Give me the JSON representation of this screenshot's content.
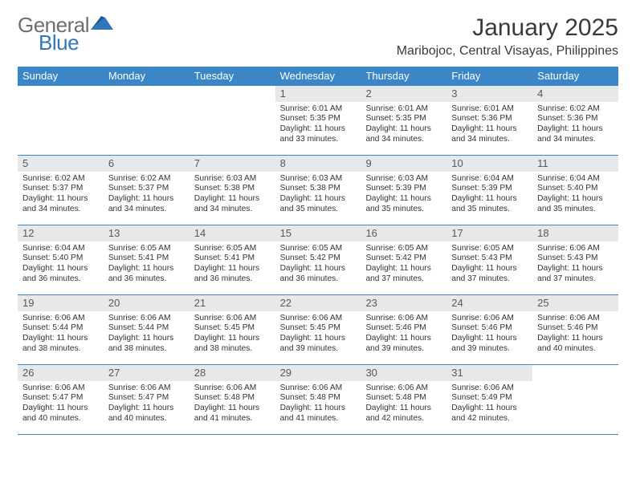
{
  "colors": {
    "header_bg": "#3B86C6",
    "row_rule": "#3B86C6",
    "daynum_bg": "#e7e8e9",
    "daynum_text": "#57595b",
    "body_text": "#333333",
    "page_bg": "#ffffff",
    "logo_gray": "#6d6e71",
    "logo_blue": "#2F77B9"
  },
  "logo": {
    "word1": "General",
    "word2": "Blue"
  },
  "title": "January 2025",
  "location": "Maribojoc, Central Visayas, Philippines",
  "days_of_week": [
    "Sunday",
    "Monday",
    "Tuesday",
    "Wednesday",
    "Thursday",
    "Friday",
    "Saturday"
  ],
  "weeks": [
    [
      {
        "n": "",
        "lines": []
      },
      {
        "n": "",
        "lines": []
      },
      {
        "n": "",
        "lines": []
      },
      {
        "n": "1",
        "lines": [
          "Sunrise: 6:01 AM",
          "Sunset: 5:35 PM",
          "Daylight: 11 hours and 33 minutes."
        ]
      },
      {
        "n": "2",
        "lines": [
          "Sunrise: 6:01 AM",
          "Sunset: 5:35 PM",
          "Daylight: 11 hours and 34 minutes."
        ]
      },
      {
        "n": "3",
        "lines": [
          "Sunrise: 6:01 AM",
          "Sunset: 5:36 PM",
          "Daylight: 11 hours and 34 minutes."
        ]
      },
      {
        "n": "4",
        "lines": [
          "Sunrise: 6:02 AM",
          "Sunset: 5:36 PM",
          "Daylight: 11 hours and 34 minutes."
        ]
      }
    ],
    [
      {
        "n": "5",
        "lines": [
          "Sunrise: 6:02 AM",
          "Sunset: 5:37 PM",
          "Daylight: 11 hours and 34 minutes."
        ]
      },
      {
        "n": "6",
        "lines": [
          "Sunrise: 6:02 AM",
          "Sunset: 5:37 PM",
          "Daylight: 11 hours and 34 minutes."
        ]
      },
      {
        "n": "7",
        "lines": [
          "Sunrise: 6:03 AM",
          "Sunset: 5:38 PM",
          "Daylight: 11 hours and 34 minutes."
        ]
      },
      {
        "n": "8",
        "lines": [
          "Sunrise: 6:03 AM",
          "Sunset: 5:38 PM",
          "Daylight: 11 hours and 35 minutes."
        ]
      },
      {
        "n": "9",
        "lines": [
          "Sunrise: 6:03 AM",
          "Sunset: 5:39 PM",
          "Daylight: 11 hours and 35 minutes."
        ]
      },
      {
        "n": "10",
        "lines": [
          "Sunrise: 6:04 AM",
          "Sunset: 5:39 PM",
          "Daylight: 11 hours and 35 minutes."
        ]
      },
      {
        "n": "11",
        "lines": [
          "Sunrise: 6:04 AM",
          "Sunset: 5:40 PM",
          "Daylight: 11 hours and 35 minutes."
        ]
      }
    ],
    [
      {
        "n": "12",
        "lines": [
          "Sunrise: 6:04 AM",
          "Sunset: 5:40 PM",
          "Daylight: 11 hours and 36 minutes."
        ]
      },
      {
        "n": "13",
        "lines": [
          "Sunrise: 6:05 AM",
          "Sunset: 5:41 PM",
          "Daylight: 11 hours and 36 minutes."
        ]
      },
      {
        "n": "14",
        "lines": [
          "Sunrise: 6:05 AM",
          "Sunset: 5:41 PM",
          "Daylight: 11 hours and 36 minutes."
        ]
      },
      {
        "n": "15",
        "lines": [
          "Sunrise: 6:05 AM",
          "Sunset: 5:42 PM",
          "Daylight: 11 hours and 36 minutes."
        ]
      },
      {
        "n": "16",
        "lines": [
          "Sunrise: 6:05 AM",
          "Sunset: 5:42 PM",
          "Daylight: 11 hours and 37 minutes."
        ]
      },
      {
        "n": "17",
        "lines": [
          "Sunrise: 6:05 AM",
          "Sunset: 5:43 PM",
          "Daylight: 11 hours and 37 minutes."
        ]
      },
      {
        "n": "18",
        "lines": [
          "Sunrise: 6:06 AM",
          "Sunset: 5:43 PM",
          "Daylight: 11 hours and 37 minutes."
        ]
      }
    ],
    [
      {
        "n": "19",
        "lines": [
          "Sunrise: 6:06 AM",
          "Sunset: 5:44 PM",
          "Daylight: 11 hours and 38 minutes."
        ]
      },
      {
        "n": "20",
        "lines": [
          "Sunrise: 6:06 AM",
          "Sunset: 5:44 PM",
          "Daylight: 11 hours and 38 minutes."
        ]
      },
      {
        "n": "21",
        "lines": [
          "Sunrise: 6:06 AM",
          "Sunset: 5:45 PM",
          "Daylight: 11 hours and 38 minutes."
        ]
      },
      {
        "n": "22",
        "lines": [
          "Sunrise: 6:06 AM",
          "Sunset: 5:45 PM",
          "Daylight: 11 hours and 39 minutes."
        ]
      },
      {
        "n": "23",
        "lines": [
          "Sunrise: 6:06 AM",
          "Sunset: 5:46 PM",
          "Daylight: 11 hours and 39 minutes."
        ]
      },
      {
        "n": "24",
        "lines": [
          "Sunrise: 6:06 AM",
          "Sunset: 5:46 PM",
          "Daylight: 11 hours and 39 minutes."
        ]
      },
      {
        "n": "25",
        "lines": [
          "Sunrise: 6:06 AM",
          "Sunset: 5:46 PM",
          "Daylight: 11 hours and 40 minutes."
        ]
      }
    ],
    [
      {
        "n": "26",
        "lines": [
          "Sunrise: 6:06 AM",
          "Sunset: 5:47 PM",
          "Daylight: 11 hours and 40 minutes."
        ]
      },
      {
        "n": "27",
        "lines": [
          "Sunrise: 6:06 AM",
          "Sunset: 5:47 PM",
          "Daylight: 11 hours and 40 minutes."
        ]
      },
      {
        "n": "28",
        "lines": [
          "Sunrise: 6:06 AM",
          "Sunset: 5:48 PM",
          "Daylight: 11 hours and 41 minutes."
        ]
      },
      {
        "n": "29",
        "lines": [
          "Sunrise: 6:06 AM",
          "Sunset: 5:48 PM",
          "Daylight: 11 hours and 41 minutes."
        ]
      },
      {
        "n": "30",
        "lines": [
          "Sunrise: 6:06 AM",
          "Sunset: 5:48 PM",
          "Daylight: 11 hours and 42 minutes."
        ]
      },
      {
        "n": "31",
        "lines": [
          "Sunrise: 6:06 AM",
          "Sunset: 5:49 PM",
          "Daylight: 11 hours and 42 minutes."
        ]
      },
      {
        "n": "",
        "lines": []
      }
    ]
  ]
}
